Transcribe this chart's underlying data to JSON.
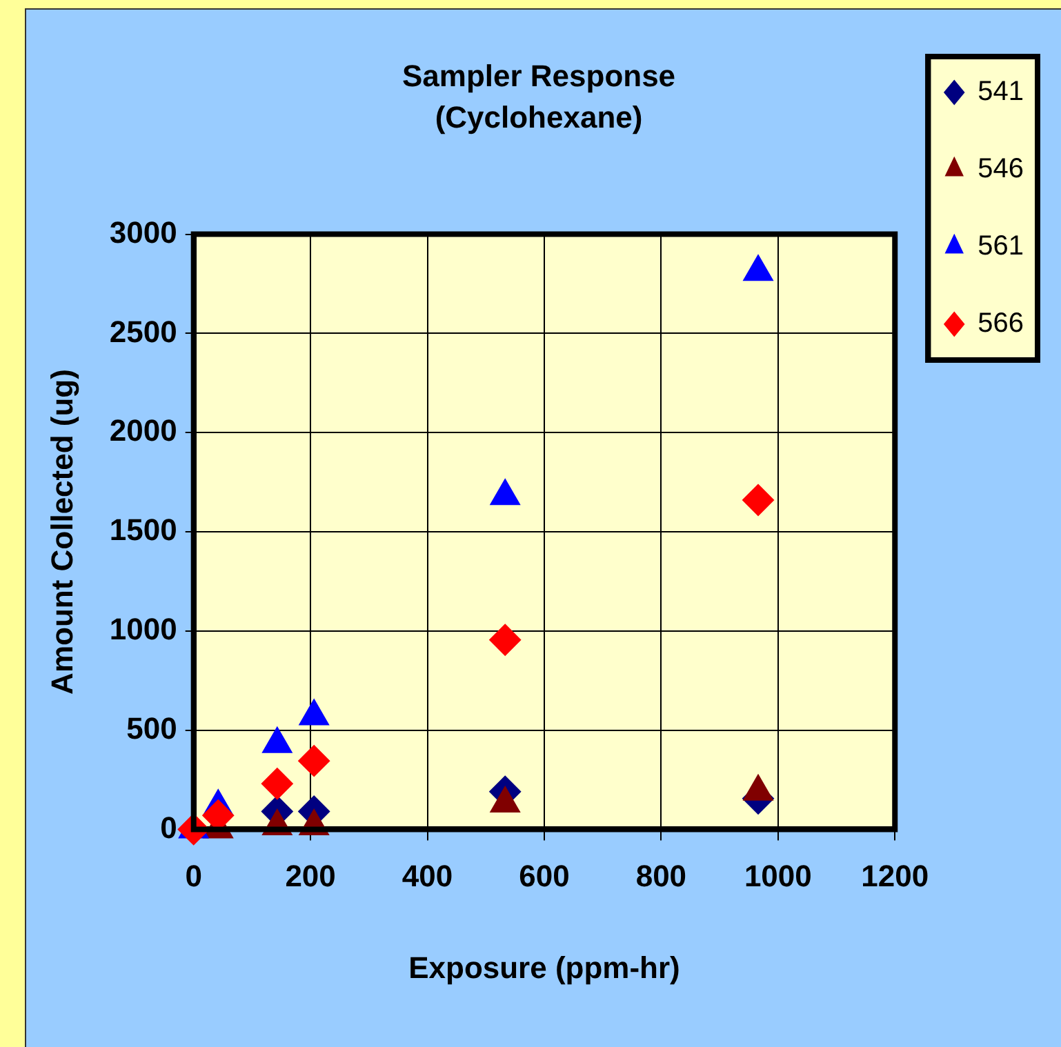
{
  "chart_data": {
    "type": "scatter",
    "title": "Sampler Response",
    "subtitle": "(Cyclohexane)",
    "xlabel": "Exposure (ppm-hr)",
    "ylabel": "Amount Collected (ug)",
    "x": [
      0,
      42,
      143,
      206,
      533,
      966
    ],
    "series": [
      {
        "name": "541",
        "color": "#000080",
        "marker": "diamond",
        "values": [
          null,
          null,
          90,
          90,
          190,
          155
        ]
      },
      {
        "name": "546",
        "color": "#800000",
        "marker": "triangle",
        "values": [
          null,
          0,
          15,
          15,
          130,
          190
        ]
      },
      {
        "name": "561",
        "color": "#0000ff",
        "marker": "triangle",
        "values": [
          0,
          115,
          430,
          570,
          1680,
          2810
        ]
      },
      {
        "name": "566",
        "color": "#ff0000",
        "marker": "diamond",
        "values": [
          0,
          70,
          230,
          345,
          955,
          1660
        ]
      }
    ],
    "xlim": [
      0,
      1200
    ],
    "xticks": [
      0,
      200,
      400,
      600,
      800,
      1000,
      1200
    ],
    "ylim": [
      0,
      3000
    ],
    "yticks": [
      0,
      500,
      1000,
      1500,
      2000,
      2500,
      3000
    ],
    "grid": true,
    "legend": "top right"
  }
}
